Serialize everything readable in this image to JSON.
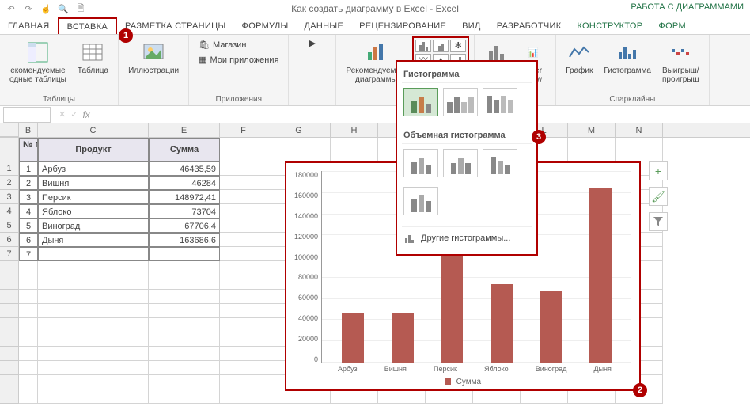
{
  "title": "Как создать диаграмму в Excel - Excel",
  "chart_tools_label": "РАБОТА С ДИАГРАММАМИ",
  "tabs": {
    "home": "ГЛАВНАЯ",
    "insert": "ВСТАВКА",
    "page_layout": "РАЗМЕТКА СТРАНИЦЫ",
    "formulas": "ФОРМУЛЫ",
    "data": "ДАННЫЕ",
    "review": "РЕЦЕНЗИРОВАНИЕ",
    "view": "ВИД",
    "developer": "РАЗРАБОТЧИК",
    "design": "КОНСТРУКТОР",
    "format": "ФОРМ"
  },
  "callouts": {
    "c1": "1",
    "c2": "2",
    "c3": "3"
  },
  "ribbon": {
    "pivot_rec": "екомендуемые\nодные таблицы",
    "table": "Таблица",
    "tables_group": "Таблицы",
    "illustrations": "Иллюстрации",
    "store": "Магазин",
    "my_apps": "Мои приложения",
    "apps_group": "Приложения",
    "rec_charts": "Рекомендуемые\nдиаграммы",
    "power_view": "ower\nView",
    "reports_group": "тчеты",
    "chart_line": "График",
    "chart_hist": "Гистограмма",
    "chart_winloss": "Выигрыш/\nпроигрыш",
    "sparklines_group": "Спарклайны"
  },
  "chart_dropdown": {
    "section1_title": "Гистограмма",
    "section2_title": "Объемная гистограмма",
    "more_link": "Другие гистограммы...",
    "thumb_2d_colors": [
      [
        [
          "#5a8c5a",
          55
        ],
        [
          "#c77d4a",
          75
        ],
        [
          "#888",
          40
        ]
      ],
      [
        [
          "#888",
          50
        ],
        [
          "#888",
          70
        ],
        [
          "#bbb",
          50
        ],
        [
          "#bbb",
          70
        ]
      ],
      [
        [
          "#888",
          80
        ],
        [
          "#888",
          60
        ],
        [
          "#bbb",
          80
        ],
        [
          "#bbb",
          60
        ]
      ]
    ],
    "thumb_3d_colors": [
      [
        [
          "#888",
          55
        ],
        [
          "#aaa",
          75
        ],
        [
          "#888",
          40
        ]
      ],
      [
        [
          "#888",
          50
        ],
        [
          "#aaa",
          70
        ],
        [
          "#888",
          50
        ]
      ],
      [
        [
          "#888",
          80
        ],
        [
          "#aaa",
          60
        ],
        [
          "#888",
          40
        ]
      ],
      [
        [
          "#888",
          60
        ],
        [
          "#aaa",
          80
        ],
        [
          "#888",
          50
        ]
      ]
    ]
  },
  "columns": {
    "letters": [
      "B",
      "C",
      "E",
      "F",
      "G",
      "H",
      "I",
      "J",
      "K",
      "L",
      "M",
      "N"
    ],
    "widths": [
      24,
      140,
      90,
      60,
      80,
      60,
      60,
      60,
      60,
      60,
      60,
      60
    ],
    "col_b_offset_left": 24
  },
  "table": {
    "header_b": "№ п/п",
    "header_c": "Продукт",
    "header_e": "Сумма",
    "rows": [
      {
        "n": "1",
        "c": "Арбуз",
        "e": "46435,59"
      },
      {
        "n": "2",
        "c": "Вишня",
        "e": "46284"
      },
      {
        "n": "3",
        "c": "Персик",
        "e": "148972,41"
      },
      {
        "n": "4",
        "c": "Яблоко",
        "e": "73704"
      },
      {
        "n": "5",
        "c": "Виноград",
        "e": "67706,4"
      },
      {
        "n": "6",
        "c": "Дыня",
        "e": "163686,6"
      },
      {
        "n": "7",
        "c": "",
        "e": ""
      }
    ]
  },
  "chart": {
    "type": "bar",
    "categories": [
      "Арбуз",
      "Вишня",
      "Персик",
      "Яблоко",
      "Виноград",
      "Дыня"
    ],
    "values": [
      46435.59,
      46284,
      148972.41,
      73704,
      67706.4,
      163686.6
    ],
    "ylim": [
      0,
      180000
    ],
    "ytick_step": 20000,
    "yticks": [
      "180000",
      "160000",
      "140000",
      "120000",
      "100000",
      "80000",
      "60000",
      "40000",
      "20000",
      "0"
    ],
    "bar_color": "#b55a52",
    "grid_color": "#eeeeee",
    "axis_color": "#999999",
    "legend_label": "Сумма",
    "title_fontsize": 10,
    "label_fontsize": 9
  },
  "side_btns": {
    "plus": "+",
    "brush": "🖌",
    "filter": "▼"
  }
}
